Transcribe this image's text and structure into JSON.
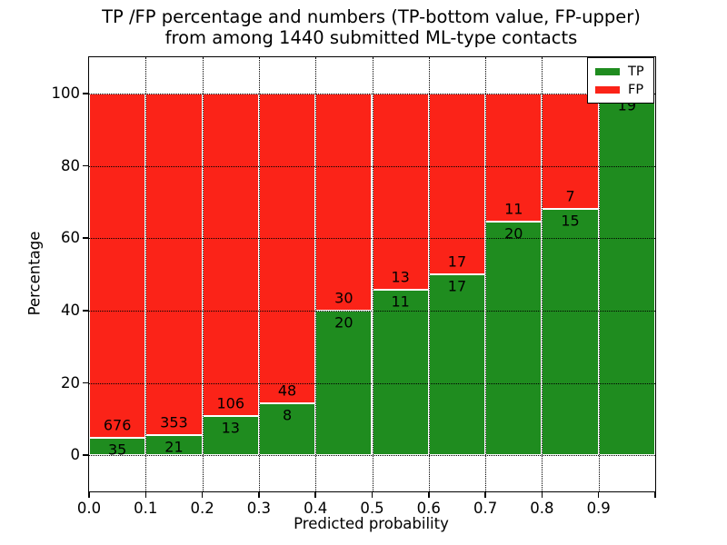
{
  "chart_data": {
    "type": "bar",
    "stacked": true,
    "normalized_to_percent": true,
    "title": "TP /FP percentage and numbers (TP-bottom value, FP-upper)\nfrom among 1440 submitted ML-type contacts",
    "title_lines": [
      "TP /FP percentage and numbers (TP-bottom value, FP-upper)",
      "from among 1440 submitted ML-type contacts"
    ],
    "xlabel": "Predicted probability",
    "ylabel": "Percentage",
    "total_contacts": 1440,
    "xlim": [
      0.0,
      1.0
    ],
    "ylim": [
      -10,
      110
    ],
    "bin_width": 0.1,
    "bin_starts": [
      0.0,
      0.1,
      0.2,
      0.3,
      0.4,
      0.5,
      0.6,
      0.7,
      0.8,
      0.9
    ],
    "xtick_labels": [
      "0.0",
      "0.1",
      "0.2",
      "0.3",
      "0.4",
      "0.5",
      "0.6",
      "0.7",
      "0.8",
      "0.9"
    ],
    "ytick_values": [
      0,
      20,
      40,
      60,
      80,
      100
    ],
    "grid": "dotted",
    "series": [
      {
        "name": "TP",
        "color": "#1f8c1f",
        "counts": [
          35,
          21,
          13,
          8,
          20,
          11,
          17,
          20,
          15,
          19
        ]
      },
      {
        "name": "FP",
        "color": "#fb2318",
        "counts": [
          676,
          353,
          106,
          48,
          30,
          13,
          17,
          11,
          7,
          0
        ]
      }
    ],
    "legend": {
      "position": "upper right",
      "entries": [
        {
          "label": "TP",
          "color": "#1f8c1f"
        },
        {
          "label": "FP",
          "color": "#fb2318"
        }
      ]
    }
  }
}
